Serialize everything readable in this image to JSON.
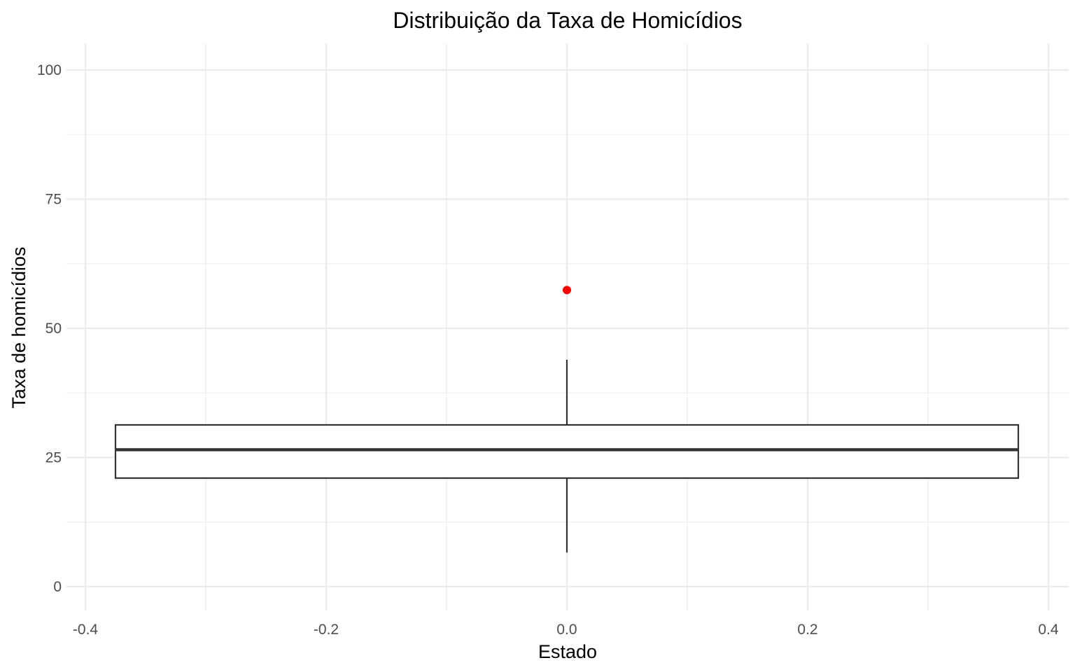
{
  "chart_data": {
    "type": "boxplot",
    "title": "Distribuição da Taxa de Homicídios",
    "xlabel": "Estado",
    "ylabel": "Taxa de homicídios",
    "xlim": [
      -0.4,
      0.4
    ],
    "ylim": [
      0,
      100
    ],
    "x_ticks": [
      -0.4,
      -0.2,
      0.0,
      0.2,
      0.4
    ],
    "x_tick_labels": [
      "-0.4",
      "-0.2",
      "0.0",
      "0.2",
      "0.4"
    ],
    "y_ticks": [
      0,
      25,
      50,
      75,
      100
    ],
    "y_tick_labels": [
      "0",
      "25",
      "50",
      "75",
      "100"
    ],
    "grid": true,
    "box": {
      "x_center": 0.0,
      "x_left": -0.375,
      "x_right": 0.375,
      "whisker_low": 6.6,
      "q1": 21.0,
      "median": 26.5,
      "q3": 31.3,
      "whisker_high": 43.9
    },
    "outliers": [
      57.4
    ],
    "colors": {
      "box_outline": "#333333",
      "outlier": "#ff0000",
      "grid": "#ebebeb",
      "background": "#ffffff"
    }
  }
}
